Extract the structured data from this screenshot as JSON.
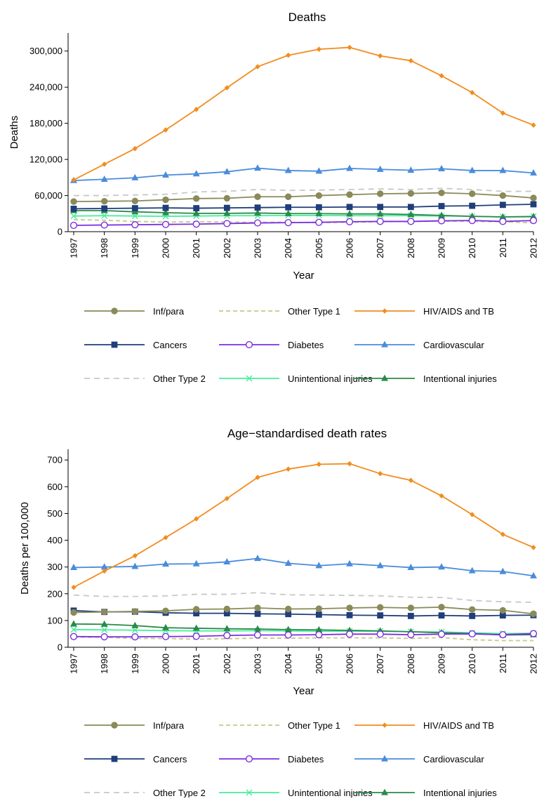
{
  "colors": {
    "Inf/para": "#8a8a5a",
    "Other Type 1": "#c8c88a",
    "HIV/AIDS and TB": "#f28c1e",
    "Cancers": "#1f3e7a",
    "Diabetes": "#7b2ee0",
    "Cardiovascular": "#4a8cdc",
    "Other Type 2": "#c8c8c8",
    "Unintentional injuries": "#44ee99",
    "Intentional injuries": "#2a8a4a"
  },
  "chart_data": [
    {
      "type": "line",
      "title": "Deaths",
      "xlabel": "Year",
      "ylabel": "Deaths",
      "ylim": [
        0,
        330000
      ],
      "yticks": [
        0,
        60000,
        120000,
        180000,
        240000,
        300000
      ],
      "ytick_labels": [
        "0",
        "60,000",
        "120,000",
        "180,000",
        "240,000",
        "300,000"
      ],
      "x": [
        1997,
        1998,
        1999,
        2000,
        2001,
        2002,
        2003,
        2004,
        2005,
        2006,
        2007,
        2008,
        2009,
        2010,
        2011,
        2012
      ],
      "x_labels": [
        "1997",
        "1998",
        "1999",
        "2000",
        "2001",
        "2002",
        "2003",
        "2004",
        "2005",
        "2006",
        "2007",
        "2008",
        "2009",
        "2010",
        "2011",
        "2012"
      ],
      "legend": "bottom",
      "series": [
        {
          "name": "Inf/para",
          "marker": "circle",
          "dash": "",
          "values": [
            50000,
            50500,
            51000,
            53000,
            55000,
            55500,
            58000,
            58000,
            60000,
            61500,
            63000,
            63500,
            64500,
            63000,
            60000,
            56000
          ]
        },
        {
          "name": "Other Type 1",
          "marker": "none",
          "dash": "6,4",
          "values": [
            20000,
            19000,
            17000,
            16000,
            16500,
            16000,
            15500,
            15500,
            15000,
            15500,
            16500,
            17000,
            17500,
            17000,
            16500,
            14500
          ]
        },
        {
          "name": "HIV/AIDS and TB",
          "marker": "diamond",
          "dash": "",
          "values": [
            86000,
            112000,
            138000,
            169000,
            203000,
            239000,
            274000,
            293000,
            303000,
            306000,
            292000,
            284000,
            259000,
            231000,
            197000,
            177000
          ]
        },
        {
          "name": "Cancers",
          "marker": "square",
          "dash": "",
          "values": [
            38000,
            38500,
            39000,
            39500,
            39000,
            39500,
            40000,
            40500,
            40500,
            41000,
            41000,
            41000,
            42500,
            43000,
            44500,
            45500
          ]
        },
        {
          "name": "Diabetes",
          "marker": "circle-open",
          "dash": "",
          "values": [
            10500,
            11000,
            11500,
            12000,
            12500,
            13500,
            14500,
            15000,
            15500,
            16500,
            17000,
            17000,
            18000,
            18500,
            17000,
            18500
          ]
        },
        {
          "name": "Cardiovascular",
          "marker": "triangle",
          "dash": "",
          "values": [
            85000,
            87000,
            89500,
            94000,
            96000,
            99500,
            105500,
            101500,
            100500,
            105000,
            103500,
            102000,
            104500,
            101500,
            101500,
            97500
          ]
        },
        {
          "name": "Other Type 2",
          "marker": "none",
          "dash": "8,6",
          "values": [
            60000,
            60000,
            61000,
            62000,
            66000,
            67000,
            70000,
            68500,
            69000,
            70000,
            71000,
            70000,
            72000,
            70000,
            67000,
            67000
          ]
        },
        {
          "name": "Unintentional injuries",
          "marker": "x",
          "dash": "",
          "values": [
            26000,
            26500,
            26000,
            25500,
            26000,
            26500,
            26500,
            27000,
            27000,
            26500,
            26500,
            26500,
            26000,
            25500,
            24500,
            25500
          ]
        },
        {
          "name": "Intentional injuries",
          "marker": "triangle",
          "dash": "",
          "values": [
            35000,
            35000,
            33000,
            31500,
            30500,
            30500,
            31000,
            30000,
            30000,
            29500,
            29500,
            28500,
            27000,
            25500,
            24500,
            25000
          ]
        }
      ]
    },
    {
      "type": "line",
      "title": "Age−standardised death rates",
      "xlabel": "Year",
      "ylabel": "Deaths per 100,000",
      "ylim": [
        0,
        740
      ],
      "yticks": [
        0,
        100,
        200,
        300,
        400,
        500,
        600,
        700
      ],
      "ytick_labels": [
        "0",
        "100",
        "200",
        "300",
        "400",
        "500",
        "600",
        "700"
      ],
      "x": [
        1997,
        1998,
        1999,
        2000,
        2001,
        2002,
        2003,
        2004,
        2005,
        2006,
        2007,
        2008,
        2009,
        2010,
        2011,
        2012
      ],
      "x_labels": [
        "1997",
        "1998",
        "1999",
        "2000",
        "2001",
        "2002",
        "2003",
        "2004",
        "2005",
        "2006",
        "2007",
        "2008",
        "2009",
        "2010",
        "2011",
        "2012"
      ],
      "legend": "bottom",
      "series": [
        {
          "name": "Inf/para",
          "marker": "circle",
          "dash": "",
          "values": [
            130,
            132,
            134,
            136,
            142,
            143,
            147,
            143,
            144,
            147,
            149,
            147,
            150,
            141,
            138,
            125
          ]
        },
        {
          "name": "Other Type 1",
          "marker": "none",
          "dash": "6,4",
          "values": [
            38,
            37,
            33,
            33,
            30,
            32,
            34,
            34,
            35,
            35,
            35,
            33,
            36,
            28,
            25,
            25
          ]
        },
        {
          "name": "HIV/AIDS and TB",
          "marker": "diamond",
          "dash": "",
          "values": [
            224,
            285,
            342,
            410,
            480,
            556,
            635,
            666,
            684,
            686,
            649,
            624,
            566,
            496,
            422,
            373
          ]
        },
        {
          "name": "Cancers",
          "marker": "square",
          "dash": "",
          "values": [
            137,
            132,
            133,
            129,
            127,
            127,
            125,
            124,
            122,
            120,
            119,
            117,
            119,
            117,
            119,
            120
          ]
        },
        {
          "name": "Diabetes",
          "marker": "circle-open",
          "dash": "",
          "values": [
            40,
            39,
            39,
            40,
            41,
            44,
            46,
            46,
            47,
            49,
            49,
            47,
            49,
            50,
            47,
            51
          ]
        },
        {
          "name": "Cardiovascular",
          "marker": "triangle",
          "dash": "",
          "values": [
            298,
            300,
            302,
            311,
            312,
            319,
            332,
            314,
            305,
            312,
            305,
            298,
            300,
            286,
            283,
            267
          ]
        },
        {
          "name": "Other Type 2",
          "marker": "none",
          "dash": "8,6",
          "values": [
            195,
            190,
            190,
            192,
            198,
            198,
            204,
            196,
            195,
            194,
            192,
            187,
            186,
            175,
            170,
            168
          ]
        },
        {
          "name": "Unintentional injuries",
          "marker": "x",
          "dash": "",
          "values": [
            66,
            65,
            64,
            62,
            61,
            61,
            62,
            61,
            60,
            60,
            60,
            58,
            57,
            54,
            51,
            52
          ]
        },
        {
          "name": "Intentional injuries",
          "marker": "triangle",
          "dash": "",
          "values": [
            87,
            86,
            81,
            73,
            71,
            69,
            68,
            66,
            65,
            63,
            61,
            58,
            54,
            51,
            46,
            47
          ]
        }
      ]
    }
  ]
}
